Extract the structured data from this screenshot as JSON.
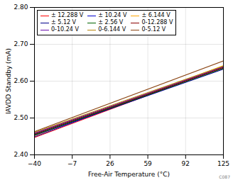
{
  "chart_data": {
    "type": "line",
    "xlabel": "Free-Air Temperature (°C)",
    "ylabel": "IAVDD Standby (mA)",
    "x": [
      -40,
      125
    ],
    "xlim": [
      -40,
      125
    ],
    "xticks": [
      -40,
      -7,
      26,
      59,
      92,
      125
    ],
    "ylim": [
      2.4,
      2.8
    ],
    "yticks": [
      2.4,
      2.5,
      2.6,
      2.7,
      2.8
    ],
    "series": [
      {
        "name": "± 12.288 V",
        "color": "#ff0000",
        "values": [
          2.447,
          2.638
        ]
      },
      {
        "name": "± 10.24 V",
        "color": "#0000cd",
        "values": [
          2.449,
          2.64
        ]
      },
      {
        "name": "± 6.144 V",
        "color": "#ffa500",
        "values": [
          2.451,
          2.642
        ]
      },
      {
        "name": "± 5.12 V",
        "color": "#00008b",
        "values": [
          2.453,
          2.633
        ]
      },
      {
        "name": "± 2.56 V",
        "color": "#006400",
        "values": [
          2.455,
          2.635
        ]
      },
      {
        "name": "0-12.288 V",
        "color": "#8b0000",
        "values": [
          2.457,
          2.637
        ]
      },
      {
        "name": "0-10.24 V",
        "color": "#6a0dad",
        "values": [
          2.459,
          2.639
        ]
      },
      {
        "name": "0-6.144 V",
        "color": "#b8860b",
        "values": [
          2.461,
          2.641
        ]
      },
      {
        "name": "0-5.12 V",
        "color": "#8b4513",
        "values": [
          2.463,
          2.655
        ]
      }
    ],
    "grid": true,
    "legend": "upper left",
    "annotations": [
      "C087"
    ]
  }
}
